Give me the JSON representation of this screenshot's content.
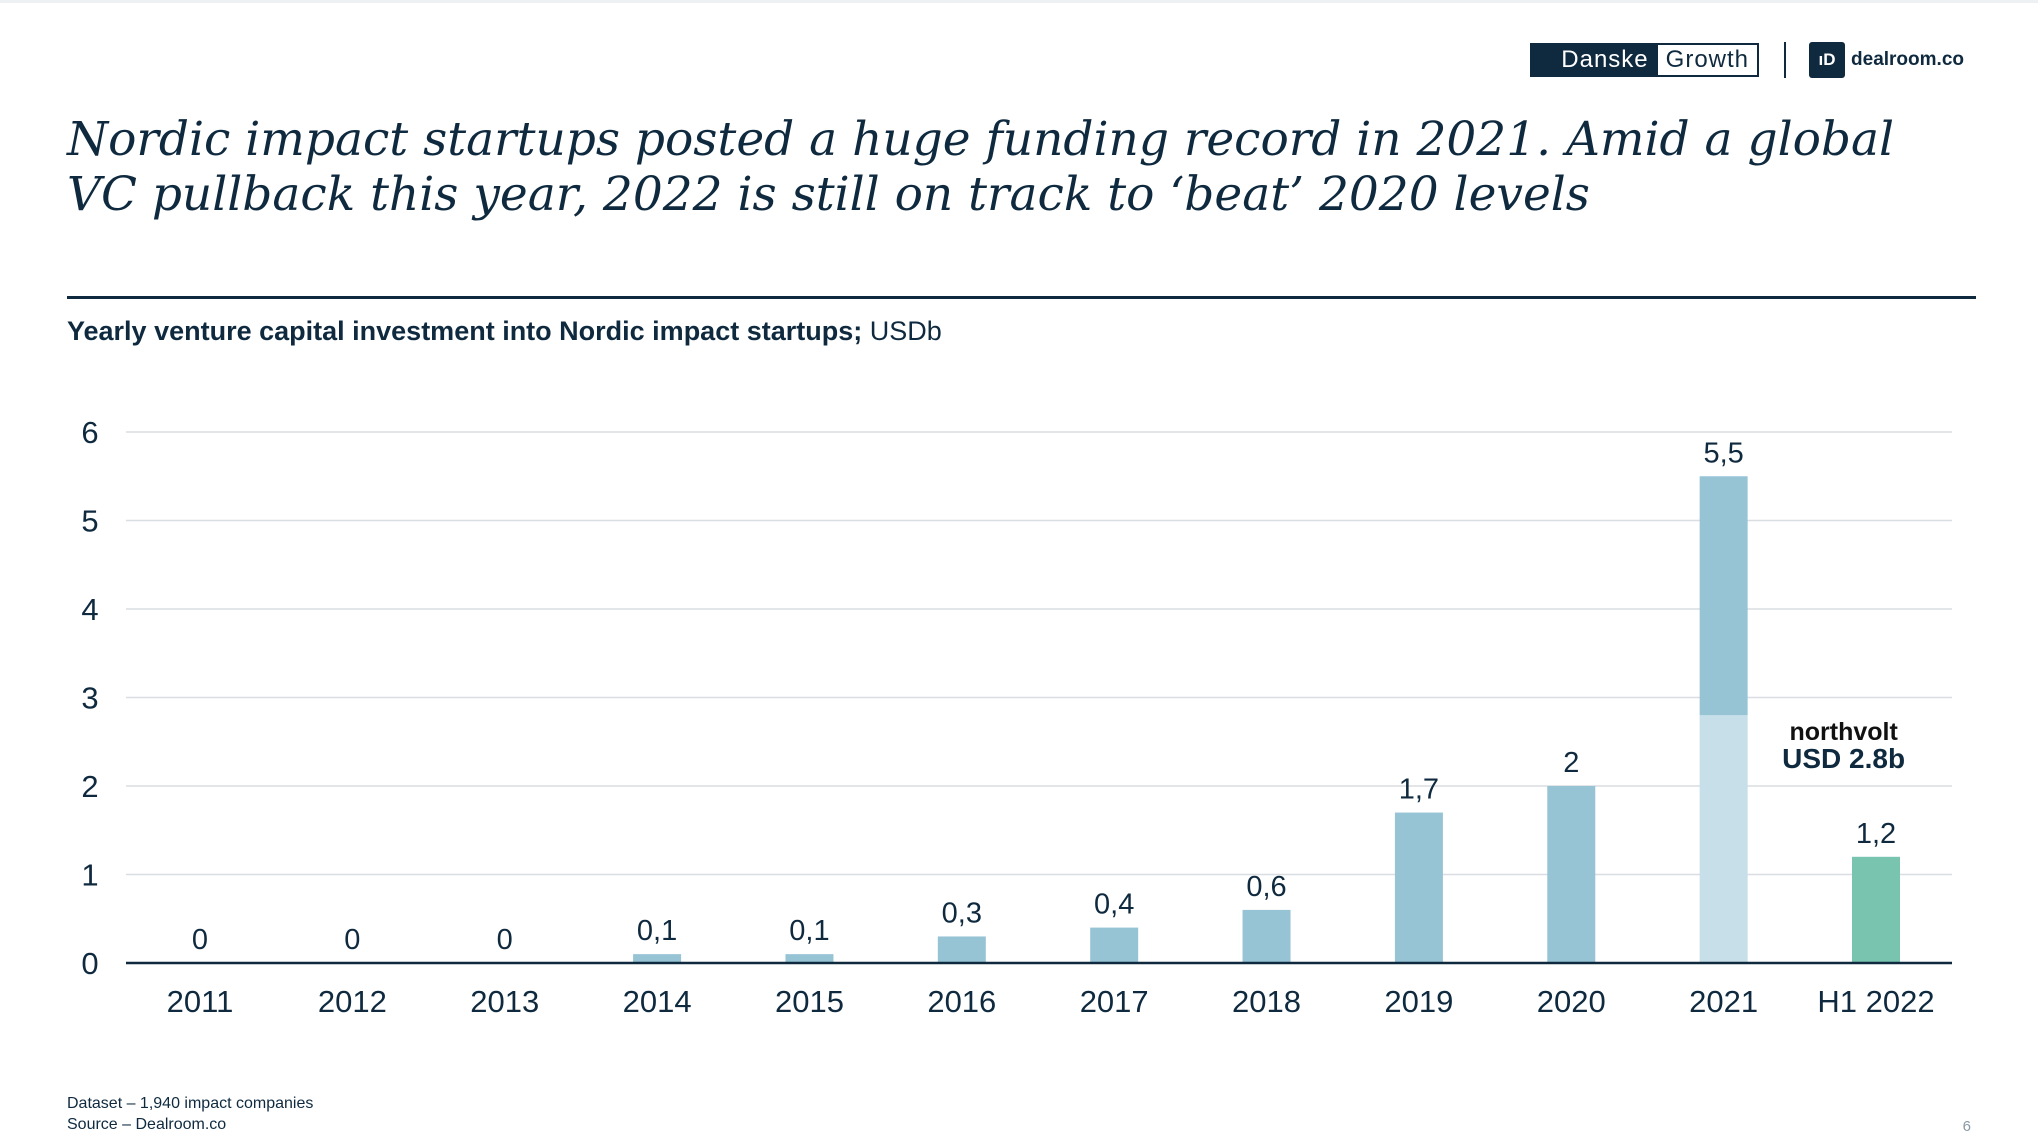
{
  "header": {
    "danske": "Danske",
    "growth": "Growth",
    "dealroom_icon": "ıD",
    "dealroom": "dealroom.co"
  },
  "headline": {
    "line1": "Nordic impact startups posted a huge funding record in 2021. Amid a global",
    "line2": "VC pullback this year, 2022 is still on track to ‘beat’ 2020 levels"
  },
  "subtitle": {
    "bold": "Yearly venture capital investment into Nordic impact startups;",
    "unit": " USDb"
  },
  "chart_data": {
    "type": "bar",
    "categories": [
      "2011",
      "2012",
      "2013",
      "2014",
      "2015",
      "2016",
      "2017",
      "2018",
      "2019",
      "2020",
      "2021",
      "H1 2022"
    ],
    "values": [
      0,
      0,
      0,
      0.1,
      0.1,
      0.3,
      0.4,
      0.6,
      1.7,
      2,
      5.5,
      1.2
    ],
    "data_labels": [
      "0",
      "0",
      "0",
      "0,1",
      "0,1",
      "0,3",
      "0,4",
      "0,6",
      "1,7",
      "2",
      "5,5",
      "1,2"
    ],
    "yticks": [
      "0",
      "1",
      "2",
      "3",
      "4",
      "5",
      "6"
    ],
    "ylim": [
      0,
      6
    ],
    "grid": true,
    "title": "Yearly venture capital investment into Nordic impact startups; USDb",
    "annotation": {
      "category": "2021",
      "portion_value": 2.8,
      "brand": "northvolt",
      "text": "USD 2.8b"
    },
    "colors": {
      "bar": "#97c4d5",
      "bar_highlight_portion": "#c6dfe9",
      "bar_last": "#78c4ae",
      "grid": "#d9dee2",
      "axis": "#0f2a3f",
      "text": "#0f2a3f"
    }
  },
  "footer": {
    "dataset": "Dataset – 1,940 impact companies",
    "source": "Source – Dealroom.co",
    "page": "6"
  }
}
